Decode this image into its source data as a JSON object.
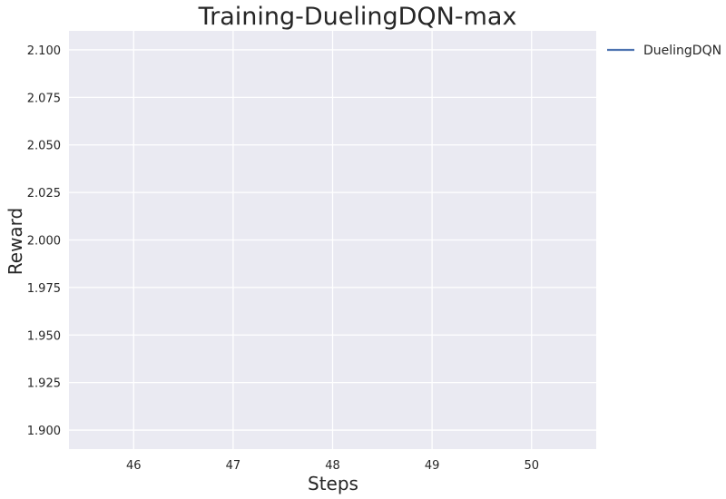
{
  "chart_data": {
    "type": "line",
    "title": "Training-DuelingDQN-max",
    "xlabel": "Steps",
    "ylabel": "Reward",
    "xlim": [
      45.35,
      50.65
    ],
    "ylim": [
      1.89,
      2.11
    ],
    "xticks": [
      46,
      47,
      48,
      49,
      50
    ],
    "yticks": [
      1.9,
      1.925,
      1.95,
      1.975,
      2.0,
      2.025,
      2.05,
      2.075,
      2.1
    ],
    "ytick_labels": [
      "1.900",
      "1.925",
      "1.950",
      "1.975",
      "2.000",
      "2.025",
      "2.050",
      "2.075",
      "2.100"
    ],
    "grid": true,
    "legend_position": "outside-top-right",
    "series": [
      {
        "name": "DuelingDQN",
        "color": "#4c72b0",
        "x": [],
        "y": []
      }
    ]
  },
  "colors": {
    "plot_background": "#eaeaf2",
    "grid": "#ffffff",
    "text": "#262626"
  }
}
